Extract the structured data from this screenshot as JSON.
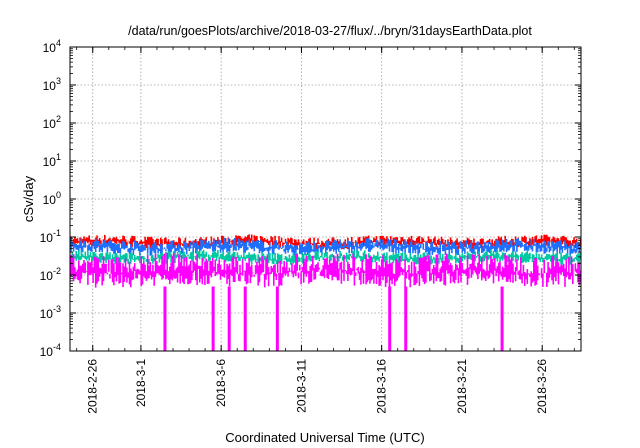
{
  "chart_data": {
    "type": "line",
    "title": "/data/run/goesPlots/archive/2018-03-27/flux/../bryn/31daysEarthData.plot",
    "xlabel": "Coordinated Universal Time (UTC)",
    "ylabel": "cSv/day",
    "yscale": "log",
    "ylim": [
      0.0001,
      10000
    ],
    "xlim": [
      "2018-02-24T14:00",
      "2018-03-28T10:00"
    ],
    "grid": true,
    "legend": "none",
    "y_ticks": [
      {
        "base": "10",
        "exp": "-4"
      },
      {
        "base": "10",
        "exp": "-3"
      },
      {
        "base": "10",
        "exp": "-2"
      },
      {
        "base": "10",
        "exp": "-1"
      },
      {
        "base": "10",
        "exp": "0"
      },
      {
        "base": "10",
        "exp": "1"
      },
      {
        "base": "10",
        "exp": "2"
      },
      {
        "base": "10",
        "exp": "3"
      },
      {
        "base": "10",
        "exp": "4"
      }
    ],
    "x_ticks": [
      "2018-2-26",
      "2018-3-1",
      "2018-3-6",
      "2018-3-11",
      "2018-3-16",
      "2018-3-21",
      "2018-3-26"
    ],
    "series": [
      {
        "color": "#ff0000",
        "typical_range": [
          0.05,
          0.1
        ]
      },
      {
        "color": "#1f6fff",
        "typical_range": [
          0.035,
          0.08
        ]
      },
      {
        "color": "#00c8a0",
        "typical_range": [
          0.02,
          0.04
        ]
      },
      {
        "color": "#ff00ff",
        "typical_range": [
          0.005,
          0.03
        ]
      }
    ],
    "dropouts": [
      "2018-03-02",
      "2018-03-05",
      "2018-03-06",
      "2018-03-07",
      "2018-03-09",
      "2018-03-16",
      "2018-03-17",
      "2018-03-23"
    ]
  }
}
